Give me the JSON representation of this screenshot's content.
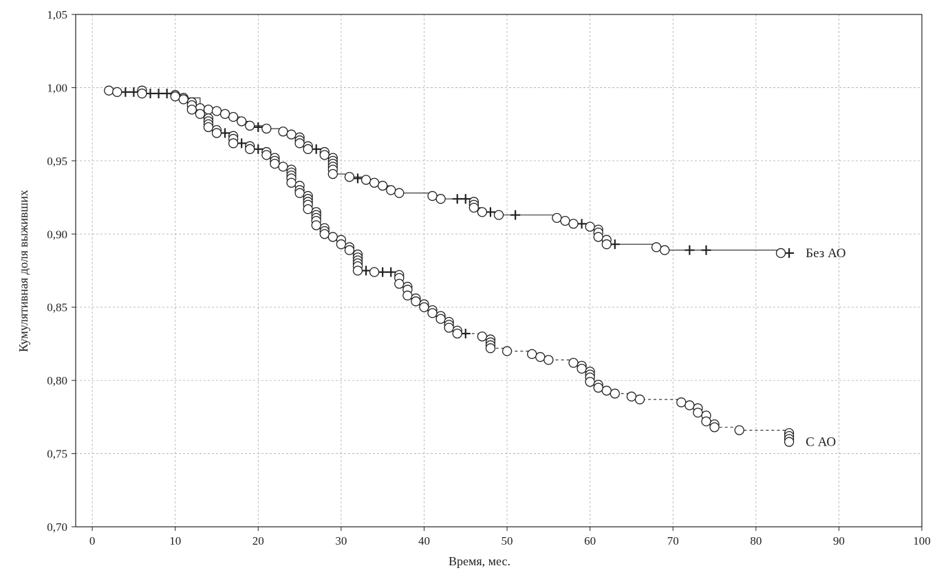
{
  "chart_data": {
    "type": "line",
    "subtype": "kaplan-meier",
    "title": "",
    "xlabel": "Время, мес.",
    "ylabel": "Кумулятивная доля выживших",
    "xlim": [
      -2,
      100
    ],
    "ylim": [
      0.7,
      1.05
    ],
    "x_ticks": [
      0,
      10,
      20,
      30,
      40,
      50,
      60,
      70,
      80,
      90,
      100
    ],
    "x_tick_labels": [
      "0",
      "10",
      "20",
      "30",
      "40",
      "50",
      "60",
      "70",
      "80",
      "90",
      "100"
    ],
    "y_ticks": [
      0.7,
      0.75,
      0.8,
      0.85,
      0.9,
      0.95,
      1.0,
      1.05
    ],
    "y_tick_labels": [
      "0,70",
      "0,75",
      "0,80",
      "0,85",
      "0,90",
      "0,95",
      "1,00",
      "1,05"
    ],
    "grid": true,
    "colors": {
      "line": "#222222",
      "grid": "#aaaaaa",
      "marker_fill": "#ffffff"
    },
    "series": [
      {
        "name": "Без АО",
        "line_style": "solid",
        "events": [
          [
            2,
            0.998
          ],
          [
            3,
            0.997
          ],
          [
            6,
            0.998
          ],
          [
            6,
            0.996
          ],
          [
            10,
            0.995
          ],
          [
            11,
            0.993
          ],
          [
            13,
            0.986
          ],
          [
            14,
            0.985
          ],
          [
            15,
            0.984
          ],
          [
            16,
            0.982
          ],
          [
            17,
            0.98
          ],
          [
            18,
            0.977
          ],
          [
            19,
            0.974
          ],
          [
            21,
            0.972
          ],
          [
            23,
            0.97
          ],
          [
            24,
            0.968
          ],
          [
            25,
            0.966
          ],
          [
            25,
            0.964
          ],
          [
            25,
            0.962
          ],
          [
            26,
            0.96
          ],
          [
            26,
            0.958
          ],
          [
            28,
            0.956
          ],
          [
            28,
            0.954
          ],
          [
            29,
            0.952
          ],
          [
            29,
            0.95
          ],
          [
            29,
            0.948
          ],
          [
            29,
            0.946
          ],
          [
            29,
            0.944
          ],
          [
            29,
            0.941
          ],
          [
            31,
            0.939
          ],
          [
            33,
            0.937
          ],
          [
            34,
            0.935
          ],
          [
            35,
            0.933
          ],
          [
            36,
            0.93
          ],
          [
            37,
            0.928
          ],
          [
            41,
            0.926
          ],
          [
            42,
            0.924
          ],
          [
            46,
            0.922
          ],
          [
            46,
            0.92
          ],
          [
            46,
            0.918
          ],
          [
            47,
            0.915
          ],
          [
            49,
            0.913
          ],
          [
            56,
            0.911
          ],
          [
            57,
            0.909
          ],
          [
            58,
            0.907
          ],
          [
            60,
            0.905
          ],
          [
            61,
            0.903
          ],
          [
            61,
            0.901
          ],
          [
            61,
            0.898
          ],
          [
            62,
            0.896
          ],
          [
            62,
            0.893
          ],
          [
            68,
            0.891
          ],
          [
            69,
            0.889
          ],
          [
            83,
            0.887
          ]
        ],
        "censored": [
          [
            4,
            0.997
          ],
          [
            5,
            0.997
          ],
          [
            7,
            0.996
          ],
          [
            8,
            0.996
          ],
          [
            9,
            0.996
          ],
          [
            14,
            0.985
          ],
          [
            20,
            0.973
          ],
          [
            27,
            0.958
          ],
          [
            32,
            0.938
          ],
          [
            44,
            0.924
          ],
          [
            45,
            0.924
          ],
          [
            48,
            0.915
          ],
          [
            51,
            0.913
          ],
          [
            59,
            0.907
          ],
          [
            63,
            0.893
          ],
          [
            72,
            0.889
          ],
          [
            74,
            0.889
          ],
          [
            84,
            0.887
          ]
        ],
        "end_x": 84,
        "label_x": 86
      },
      {
        "name": "С АО",
        "line_style": "dashed",
        "events": [
          [
            10,
            0.994
          ],
          [
            11,
            0.992
          ],
          [
            12,
            0.99
          ],
          [
            12,
            0.988
          ],
          [
            12,
            0.985
          ],
          [
            13,
            0.982
          ],
          [
            14,
            0.979
          ],
          [
            14,
            0.977
          ],
          [
            14,
            0.975
          ],
          [
            14,
            0.973
          ],
          [
            15,
            0.971
          ],
          [
            15,
            0.969
          ],
          [
            17,
            0.967
          ],
          [
            17,
            0.965
          ],
          [
            17,
            0.962
          ],
          [
            19,
            0.96
          ],
          [
            19,
            0.958
          ],
          [
            21,
            0.956
          ],
          [
            21,
            0.954
          ],
          [
            22,
            0.952
          ],
          [
            22,
            0.95
          ],
          [
            22,
            0.948
          ],
          [
            23,
            0.946
          ],
          [
            24,
            0.944
          ],
          [
            24,
            0.942
          ],
          [
            24,
            0.94
          ],
          [
            24,
            0.938
          ],
          [
            24,
            0.935
          ],
          [
            25,
            0.933
          ],
          [
            25,
            0.93
          ],
          [
            25,
            0.928
          ],
          [
            26,
            0.926
          ],
          [
            26,
            0.924
          ],
          [
            26,
            0.922
          ],
          [
            26,
            0.92
          ],
          [
            26,
            0.917
          ],
          [
            27,
            0.915
          ],
          [
            27,
            0.913
          ],
          [
            27,
            0.911
          ],
          [
            27,
            0.909
          ],
          [
            27,
            0.906
          ],
          [
            28,
            0.904
          ],
          [
            28,
            0.902
          ],
          [
            28,
            0.9
          ],
          [
            29,
            0.898
          ],
          [
            30,
            0.896
          ],
          [
            30,
            0.893
          ],
          [
            31,
            0.891
          ],
          [
            31,
            0.889
          ],
          [
            32,
            0.886
          ],
          [
            32,
            0.884
          ],
          [
            32,
            0.882
          ],
          [
            32,
            0.88
          ],
          [
            32,
            0.878
          ],
          [
            32,
            0.875
          ],
          [
            34,
            0.874
          ],
          [
            37,
            0.872
          ],
          [
            37,
            0.87
          ],
          [
            37,
            0.866
          ],
          [
            38,
            0.864
          ],
          [
            38,
            0.862
          ],
          [
            38,
            0.858
          ],
          [
            39,
            0.856
          ],
          [
            39,
            0.854
          ],
          [
            40,
            0.852
          ],
          [
            40,
            0.85
          ],
          [
            41,
            0.848
          ],
          [
            41,
            0.846
          ],
          [
            42,
            0.844
          ],
          [
            42,
            0.842
          ],
          [
            43,
            0.84
          ],
          [
            43,
            0.838
          ],
          [
            43,
            0.836
          ],
          [
            44,
            0.834
          ],
          [
            44,
            0.832
          ],
          [
            47,
            0.83
          ],
          [
            48,
            0.828
          ],
          [
            48,
            0.826
          ],
          [
            48,
            0.824
          ],
          [
            48,
            0.822
          ],
          [
            50,
            0.82
          ],
          [
            53,
            0.818
          ],
          [
            54,
            0.816
          ],
          [
            55,
            0.814
          ],
          [
            58,
            0.812
          ],
          [
            59,
            0.81
          ],
          [
            59,
            0.808
          ],
          [
            60,
            0.806
          ],
          [
            60,
            0.804
          ],
          [
            60,
            0.802
          ],
          [
            60,
            0.799
          ],
          [
            61,
            0.797
          ],
          [
            61,
            0.795
          ],
          [
            62,
            0.793
          ],
          [
            63,
            0.791
          ],
          [
            65,
            0.789
          ],
          [
            66,
            0.787
          ],
          [
            71,
            0.785
          ],
          [
            72,
            0.783
          ],
          [
            73,
            0.781
          ],
          [
            73,
            0.778
          ],
          [
            74,
            0.776
          ],
          [
            74,
            0.772
          ],
          [
            75,
            0.77
          ],
          [
            75,
            0.768
          ],
          [
            78,
            0.766
          ],
          [
            84,
            0.764
          ],
          [
            84,
            0.762
          ],
          [
            84,
            0.76
          ],
          [
            84,
            0.758
          ]
        ],
        "censored": [
          [
            16,
            0.969
          ],
          [
            18,
            0.962
          ],
          [
            20,
            0.958
          ],
          [
            33,
            0.875
          ],
          [
            35,
            0.874
          ],
          [
            36,
            0.874
          ],
          [
            45,
            0.832
          ]
        ],
        "end_x": 84,
        "label_x": 86
      }
    ]
  }
}
